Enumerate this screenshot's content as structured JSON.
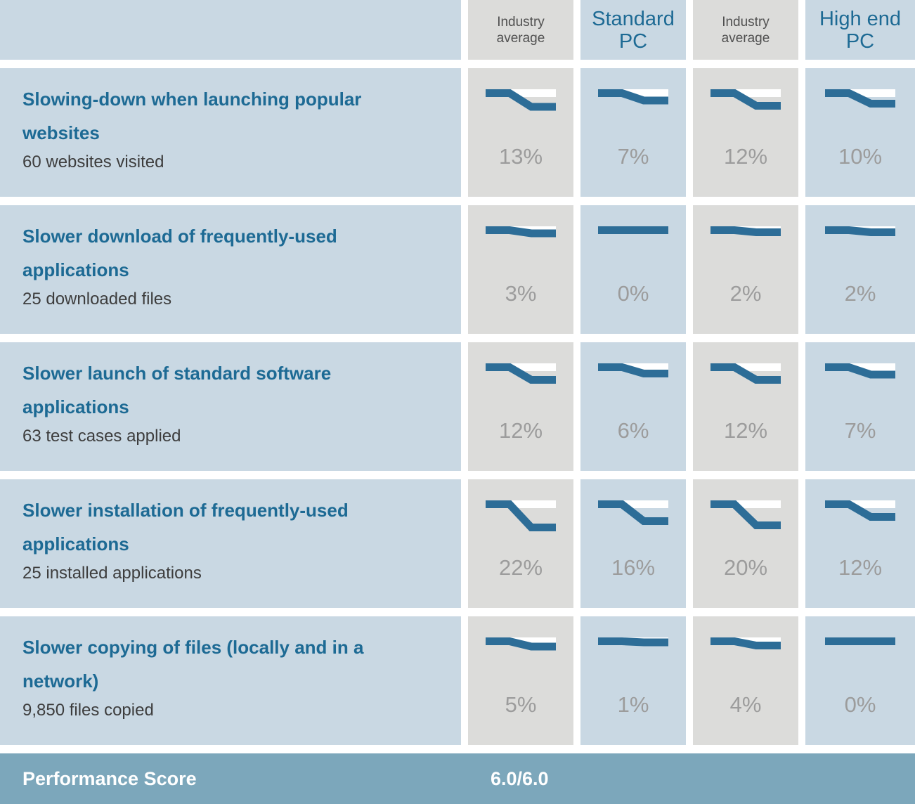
{
  "colors": {
    "cell_blue": "#c9d8e3",
    "cell_gray": "#dcdcda",
    "line_blue": "#2d6d97",
    "title_blue": "#1d6a94",
    "subtitle_gray": "#3d3d3d",
    "pct_gray": "#9c9c9c",
    "header_text": "#505050",
    "footer_bg": "#7ca7bb",
    "chart_strip_white": "#ffffff"
  },
  "header": {
    "columns": [
      {
        "label": "Industry\naverage",
        "style": "secondary"
      },
      {
        "label": "Standard\nPC",
        "style": "primary"
      },
      {
        "label": "Industry\naverage",
        "style": "secondary"
      },
      {
        "label": "High end\nPC",
        "style": "primary"
      }
    ]
  },
  "rows": [
    {
      "title": "Slowing-down when launching popular\nwebsites",
      "subtitle": "60 websites visited",
      "cells": [
        {
          "pct": 13,
          "label": "13%"
        },
        {
          "pct": 7,
          "label": "7%"
        },
        {
          "pct": 12,
          "label": "12%"
        },
        {
          "pct": 10,
          "label": "10%"
        }
      ]
    },
    {
      "title": "Slower download of frequently-used\napplications",
      "subtitle": "25 downloaded files",
      "cells": [
        {
          "pct": 3,
          "label": "3%"
        },
        {
          "pct": 0,
          "label": "0%"
        },
        {
          "pct": 2,
          "label": "2%"
        },
        {
          "pct": 2,
          "label": "2%"
        }
      ]
    },
    {
      "title": "Slower launch of standard software\napplications",
      "subtitle": "63 test cases applied",
      "cells": [
        {
          "pct": 12,
          "label": "12%"
        },
        {
          "pct": 6,
          "label": "6%"
        },
        {
          "pct": 12,
          "label": "12%"
        },
        {
          "pct": 7,
          "label": "7%"
        }
      ]
    },
    {
      "title": "Slower installation of frequently-used\napplications",
      "subtitle": "25 installed applications",
      "cells": [
        {
          "pct": 22,
          "label": "22%"
        },
        {
          "pct": 16,
          "label": "16%"
        },
        {
          "pct": 20,
          "label": "20%"
        },
        {
          "pct": 12,
          "label": "12%"
        }
      ]
    },
    {
      "title": "Slower copying of files (locally and in a\nnetwork)",
      "subtitle": "9,850 files copied",
      "cells": [
        {
          "pct": 5,
          "label": "5%"
        },
        {
          "pct": 1,
          "label": "1%"
        },
        {
          "pct": 4,
          "label": "4%"
        },
        {
          "pct": 0,
          "label": "0%"
        }
      ]
    }
  ],
  "footer": {
    "label": "Performance Score",
    "score": "6.0/6.0"
  },
  "chart_data": {
    "type": "table",
    "columns": [
      "Industry average",
      "Standard PC",
      "Industry average",
      "High end PC"
    ],
    "rows": [
      {
        "test": "Slowing-down when launching popular websites",
        "sample": "60 websites visited",
        "values_pct": [
          13,
          7,
          12,
          10
        ]
      },
      {
        "test": "Slower download of frequently-used applications",
        "sample": "25 downloaded files",
        "values_pct": [
          3,
          0,
          2,
          2
        ]
      },
      {
        "test": "Slower launch of standard software applications",
        "sample": "63 test cases applied",
        "values_pct": [
          12,
          6,
          12,
          7
        ]
      },
      {
        "test": "Slower installation of frequently-used applications",
        "sample": "25 installed applications",
        "values_pct": [
          22,
          16,
          20,
          12
        ]
      },
      {
        "test": "Slower copying of files (locally and in a network)",
        "sample": "9,850 files copied",
        "values_pct": [
          5,
          1,
          4,
          0
        ]
      }
    ],
    "cell_chart": {
      "type": "line",
      "description": "each cell shows a thick sparkline over a white baseline strip; the line starts level and steps down by the cell's slowdown percentage",
      "x": [
        "before",
        "after"
      ],
      "unit": "%"
    },
    "footer_row": {
      "label": "Performance Score",
      "value": "6.0/6.0"
    }
  }
}
